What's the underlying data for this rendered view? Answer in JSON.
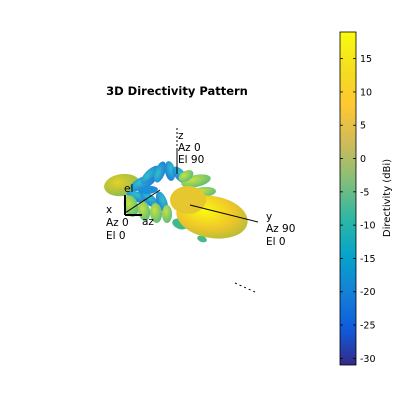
{
  "chart_data": {
    "type": "3d-surface",
    "title": "3D Directivity Pattern",
    "colorbar": {
      "label": "Directivity (dBi)",
      "ticks": [
        15,
        10,
        5,
        0,
        -5,
        -10,
        -15,
        -20,
        -25,
        -30
      ],
      "range": [
        -31,
        19
      ],
      "colormap": "parula"
    },
    "axes": {
      "z": {
        "name": "z",
        "line1": "Az 0",
        "line2": "El 90"
      },
      "x": {
        "name": "x",
        "line1": "Az 0",
        "line2": "El 0"
      },
      "y": {
        "name": "y",
        "line1": "Az 90",
        "line2": "El 0"
      },
      "el_marker": "el",
      "az_marker": "az"
    },
    "main_lobe_dbi": 19,
    "main_lobe_direction": "+y"
  }
}
